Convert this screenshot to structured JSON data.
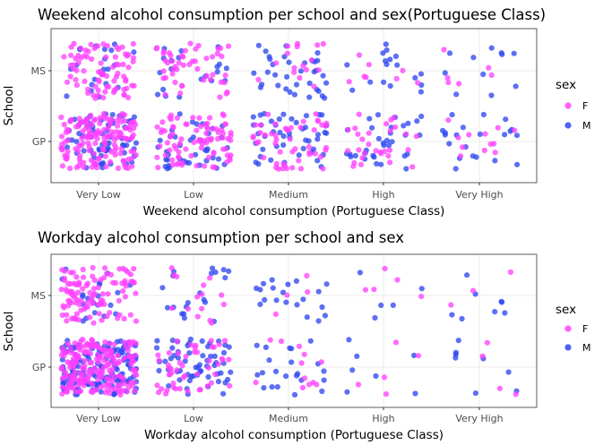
{
  "colors": {
    "F": "#ff40ff",
    "M": "#2f48f0",
    "text_dark": "#000000",
    "tick_text": "#4d4d4d",
    "grid": "#ebebeb",
    "border": "#333333"
  },
  "chart_data": [
    {
      "type": "scatter",
      "title": "Weekend alcohol consumption per school and sex(Portuguese Class)",
      "xlabel": "Weekend alcohol consumption (Portuguese Class)",
      "ylabel": "School",
      "categories": [
        "Very Low",
        "Low",
        "Medium",
        "High",
        "Very High"
      ],
      "y_categories": [
        "GP",
        "MS"
      ],
      "grid": true,
      "jitter": true,
      "legend": {
        "title": "sex",
        "placement": "right",
        "entries": [
          "F",
          "M"
        ]
      },
      "counts": {
        "GP": {
          "F": [
            150,
            86,
            50,
            30,
            12
          ],
          "M": [
            70,
            40,
            46,
            33,
            21
          ]
        },
        "MS": {
          "F": [
            80,
            50,
            16,
            8,
            6
          ],
          "M": [
            21,
            20,
            35,
            17,
            11
          ]
        }
      }
    },
    {
      "type": "scatter",
      "title": "Workday alcohol consumption per school and sex",
      "xlabel": "Workday alcohol consumption (Portuguese Class)",
      "ylabel": "School",
      "categories": [
        "Very Low",
        "Low",
        "Medium",
        "High",
        "Very High"
      ],
      "y_categories": [
        "GP",
        "MS"
      ],
      "grid": true,
      "jitter": true,
      "legend": {
        "title": "sex",
        "placement": "right",
        "entries": [
          "F",
          "M"
        ]
      },
      "counts": {
        "GP": {
          "F": [
            200,
            50,
            12,
            5,
            4
          ],
          "M": [
            150,
            58,
            22,
            7,
            8
          ]
        },
        "MS": {
          "F": [
            110,
            15,
            4,
            5,
            3
          ],
          "M": [
            20,
            20,
            20,
            5,
            8
          ]
        }
      }
    }
  ]
}
